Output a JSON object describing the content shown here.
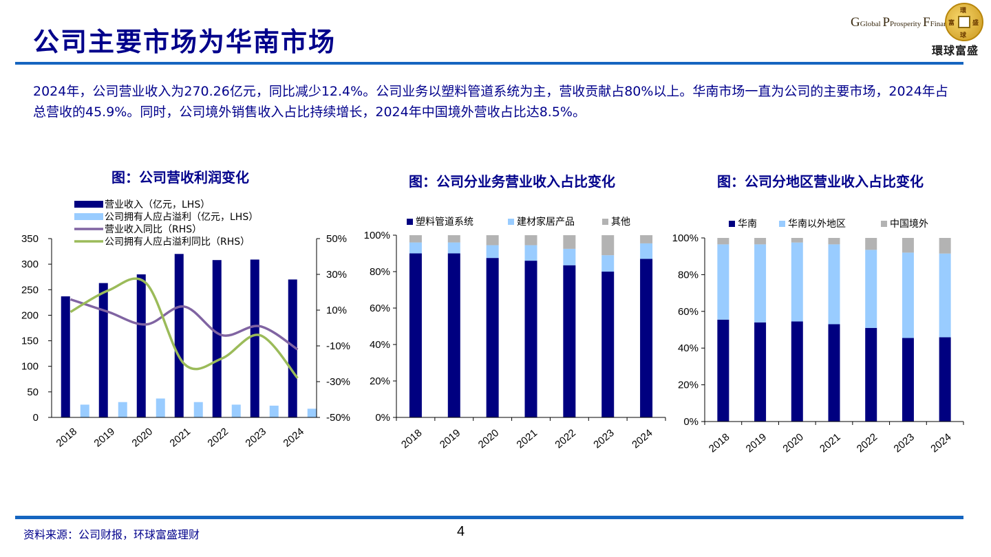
{
  "header": {
    "title": "公司主要市场为华南市场",
    "logo": {
      "line_en_1": "Global",
      "line_en_2": "Prosperity",
      "line_en_3": "Financial",
      "line_cn": "環球富盛",
      "coin_chars": [
        "環",
        "富",
        "球",
        "盛"
      ]
    }
  },
  "description": "2024年，公司营业收入为270.26亿元，同比减少12.4%。公司业务以塑料管道系统为主，营收贡献占80%以上。华南市场一直为公司的主要市场，2024年占总营收的45.9%。同时，公司境外销售收入占比持续增长，2024年中国境外营收占比达8.5%。",
  "colors": {
    "navy": "#000080",
    "light_blue": "#99ccff",
    "gray": "#b3b3b3",
    "purple": "#8064a2",
    "green": "#9bbb59",
    "title_blue": "#00008b",
    "rule_blue": "#1565c0"
  },
  "chart_data": [
    {
      "type": "bar",
      "title": "图：公司营收利润变化",
      "categories": [
        "2018",
        "2019",
        "2020",
        "2021",
        "2022",
        "2023",
        "2024"
      ],
      "series": [
        {
          "name": "营业收入（亿元，LHS）",
          "type": "bar",
          "axis": "left",
          "values": [
            237,
            263,
            280,
            320,
            308,
            309,
            270
          ]
        },
        {
          "name": "公司拥有人应占溢利（亿元，LHS）",
          "type": "bar",
          "axis": "left",
          "values": [
            25,
            30,
            37,
            30,
            25,
            23,
            17
          ]
        },
        {
          "name": "营业收入同比（RHS）",
          "type": "line",
          "axis": "right",
          "values": [
            16,
            9,
            2,
            12,
            -4,
            1,
            -12
          ]
        },
        {
          "name": "公司拥有人应占溢利同比（RHS）",
          "type": "line",
          "axis": "right",
          "values": [
            9,
            21,
            25,
            -20,
            -17,
            -4,
            -28
          ]
        }
      ],
      "yleft_ticks": [
        "0",
        "50",
        "100",
        "150",
        "200",
        "250",
        "300",
        "350"
      ],
      "yleft_lim": [
        0,
        350
      ],
      "yright_ticks": [
        "-50%",
        "-30%",
        "-10%",
        "10%",
        "30%",
        "50%"
      ],
      "yright_lim": [
        -50,
        50
      ],
      "legend": "top-left"
    },
    {
      "type": "bar",
      "stacked": true,
      "title": "图：公司分业务营业收入占比变化",
      "categories": [
        "2018",
        "2019",
        "2020",
        "2021",
        "2022",
        "2023",
        "2024"
      ],
      "series": [
        {
          "name": "塑料管道系统",
          "values": [
            90,
            90,
            87.5,
            86,
            83.5,
            80,
            87
          ]
        },
        {
          "name": "建材家居产品",
          "values": [
            6,
            6,
            7,
            8.5,
            9,
            9,
            8.5
          ]
        },
        {
          "name": "其他",
          "values": [
            4,
            4,
            5.5,
            5.5,
            7.5,
            11,
            4.5
          ]
        }
      ],
      "y_ticks": [
        "0%",
        "20%",
        "40%",
        "60%",
        "80%",
        "100%"
      ],
      "ylim": [
        0,
        100
      ],
      "legend": "top"
    },
    {
      "type": "bar",
      "stacked": true,
      "title": "图：公司分地区营业收入占比变化",
      "categories": [
        "2018",
        "2019",
        "2020",
        "2021",
        "2022",
        "2023",
        "2024"
      ],
      "series": [
        {
          "name": "华南",
          "values": [
            55.5,
            54,
            54.5,
            53,
            51,
            45.5,
            45.9
          ]
        },
        {
          "name": "华南以外地区",
          "values": [
            41,
            42.5,
            43,
            43.5,
            42.5,
            46.5,
            45.6
          ]
        },
        {
          "name": "中国境外",
          "values": [
            3.5,
            3.5,
            2.5,
            3.5,
            6.5,
            8,
            8.5
          ]
        }
      ],
      "y_ticks": [
        "0%",
        "20%",
        "40%",
        "60%",
        "80%",
        "100%"
      ],
      "ylim": [
        0,
        100
      ],
      "legend": "top"
    }
  ],
  "footer": {
    "source": "资料来源：公司财报，环球富盛理财",
    "page_number": "4"
  }
}
